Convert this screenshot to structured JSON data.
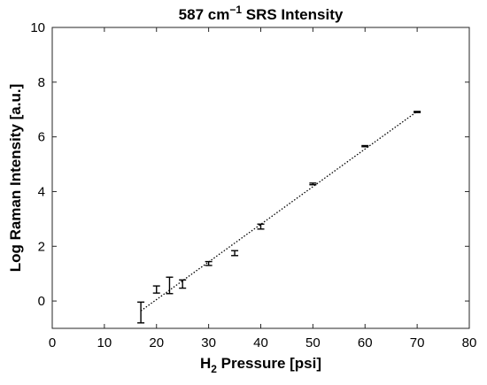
{
  "chart_data": {
    "type": "scatter",
    "title": "587 cm",
    "title_sup": "−1",
    "title_suffix": " SRS Intensity",
    "xlabel": "H",
    "xlabel_sub": "2",
    "xlabel_suffix": " Pressure [psi]",
    "ylabel": "Log Raman Intensity [a.u.]",
    "xlim": [
      0,
      80
    ],
    "ylim": [
      -1,
      10
    ],
    "xticks": [
      0,
      10,
      20,
      30,
      40,
      50,
      60,
      70,
      80
    ],
    "yticks": [
      0,
      2,
      4,
      6,
      8,
      10
    ],
    "grid": false,
    "series": [
      {
        "marker": "errorbar",
        "color": "#000000",
        "points": [
          {
            "x": 17,
            "y": -0.42,
            "err": 0.38
          },
          {
            "x": 20,
            "y": 0.42,
            "err": 0.13
          },
          {
            "x": 22.5,
            "y": 0.57,
            "err": 0.3
          },
          {
            "x": 25,
            "y": 0.62,
            "err": 0.15
          },
          {
            "x": 30,
            "y": 1.37,
            "err": 0.07
          },
          {
            "x": 35,
            "y": 1.75,
            "err": 0.09
          },
          {
            "x": 40,
            "y": 2.72,
            "err": 0.09
          },
          {
            "x": 50,
            "y": 4.28,
            "err": 0.03
          },
          {
            "x": 60,
            "y": 5.66,
            "err": 0.02
          },
          {
            "x": 70,
            "y": 6.91,
            "err": 0.02
          }
        ]
      },
      {
        "type": "line",
        "style": "dotted",
        "color": "#000000",
        "x": [
          17,
          70
        ],
        "y": [
          -0.36,
          6.93
        ]
      }
    ]
  }
}
